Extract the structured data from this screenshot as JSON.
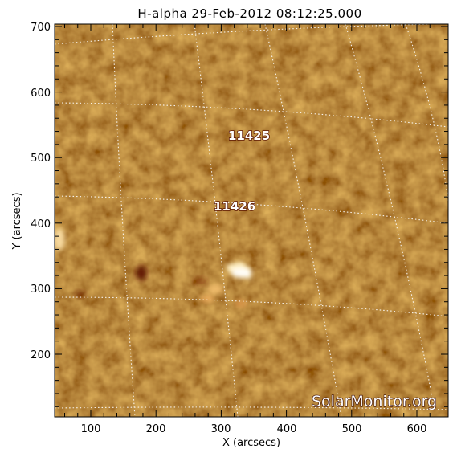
{
  "title": "H-alpha 29-Feb-2012 08:12:25.000",
  "axes": {
    "xlabel": "X (arcsecs)",
    "ylabel": "Y (arcsecs)",
    "xticks": [
      "100",
      "200",
      "300",
      "400",
      "500",
      "600"
    ],
    "yticks": [
      "200",
      "300",
      "400",
      "500",
      "600",
      "700"
    ]
  },
  "regions": [
    {
      "label": "11425"
    },
    {
      "label": "11426"
    }
  ],
  "watermark": "SolarMonitor.org",
  "colors": {
    "background": "#ffffff",
    "image_base": "#c65a14",
    "image_dark": "#8e2608",
    "image_bright": "#f2a040",
    "grid": "#ffffff"
  }
}
